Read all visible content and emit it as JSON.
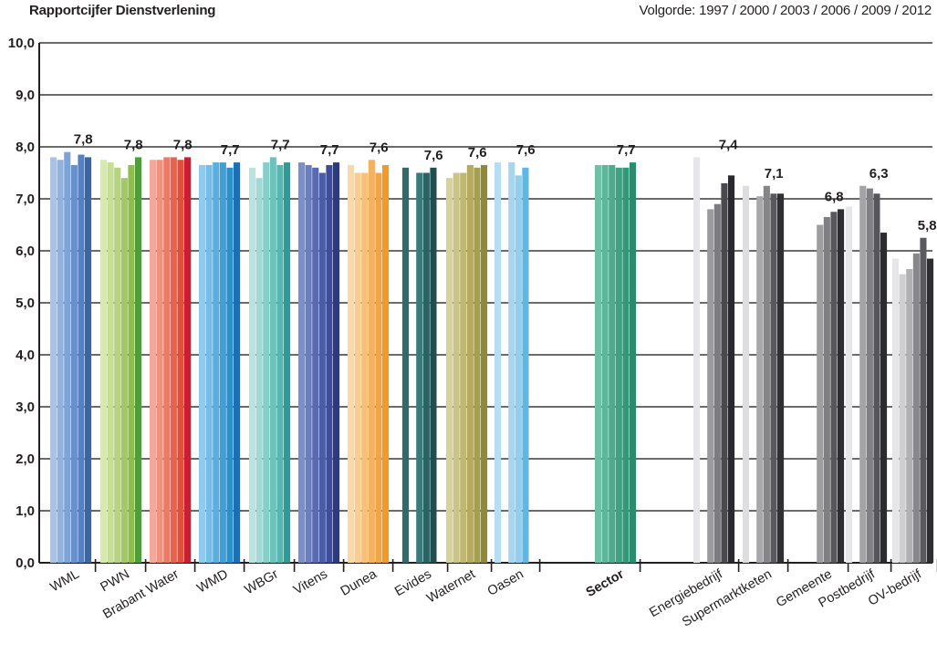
{
  "chart_data": {
    "type": "bar",
    "title": "Rapportcijfer Dienstverlening",
    "subtitle": "Volgorde: 1997 / 2000 / 2003 / 2006 / 2009 / 2012",
    "ylim": [
      0,
      10
    ],
    "yticks": [
      "0,0",
      "1,0",
      "2,0",
      "3,0",
      "4,0",
      "5,0",
      "6,0",
      "7,0",
      "8,0",
      "9,0",
      "10,0"
    ],
    "grid": true,
    "years": [
      "1997",
      "2000",
      "2003",
      "2006",
      "2009",
      "2012"
    ],
    "categories": [
      {
        "name": "WML",
        "bold": false,
        "label": "7,8",
        "values": [
          7.8,
          7.75,
          7.9,
          7.65,
          7.85,
          7.8
        ],
        "colors": [
          "#a9c3e6",
          "#92b2de",
          "#7ea3d6",
          "#6790cc",
          "#5580c2",
          "#3a66a8"
        ]
      },
      {
        "name": "PWN",
        "bold": false,
        "label": "7,8",
        "values": [
          7.75,
          7.7,
          7.6,
          7.4,
          7.65,
          7.8
        ],
        "colors": [
          "#d8e8b3",
          "#c7dd98",
          "#b6d380",
          "#a4c866",
          "#8fbd4c",
          "#4f9d3a"
        ]
      },
      {
        "name": "Brabant Water",
        "bold": false,
        "label": "7,8",
        "values": [
          7.75,
          7.75,
          7.8,
          7.8,
          7.75,
          7.8
        ],
        "colors": [
          "#f4a89a",
          "#f0907f",
          "#ec7a67",
          "#e6644f",
          "#e14e3a",
          "#c82033"
        ]
      },
      {
        "name": "WMD",
        "bold": false,
        "label": "7,7",
        "values": [
          7.65,
          7.65,
          7.7,
          7.7,
          7.6,
          7.7
        ],
        "colors": [
          "#8fcbee",
          "#74bde8",
          "#58afe1",
          "#3fa0d9",
          "#2a90cf",
          "#1c6fb3"
        ]
      },
      {
        "name": "WBGr",
        "bold": false,
        "label": "7,7",
        "values": [
          7.6,
          7.4,
          7.7,
          7.8,
          7.65,
          7.7
        ],
        "colors": [
          "#b9e3e0",
          "#a0d9d5",
          "#87cec9",
          "#6ec2bd",
          "#56b7b1",
          "#2e9b96"
        ]
      },
      {
        "name": "Vitens",
        "bold": false,
        "label": "7,7",
        "values": [
          7.7,
          7.65,
          7.6,
          7.5,
          7.65,
          7.7
        ],
        "colors": [
          "#7d8fc8",
          "#6a7dbd",
          "#586bb1",
          "#4a5ca6",
          "#3c4e9b",
          "#2a3a84"
        ]
      },
      {
        "name": "Dunea",
        "bold": false,
        "label": "7,6",
        "values": [
          7.65,
          7.5,
          7.5,
          7.75,
          7.5,
          7.65
        ],
        "colors": [
          "#fbd9a7",
          "#f9cd8f",
          "#f7c077",
          "#f5b25e",
          "#f3a546",
          "#ef9a2a"
        ]
      },
      {
        "name": "Evides",
        "bold": false,
        "label": "7,6",
        "values": [
          7.6,
          0,
          7.5,
          7.5,
          7.6,
          0
        ],
        "colors": [
          "#2f6b6b",
          "#2f6b6b",
          "#3a7a7a",
          "#2a6363",
          "#1f4d50",
          "#1f4d50"
        ]
      },
      {
        "name": "Waternet",
        "bold": false,
        "label": "7,6",
        "values": [
          7.4,
          7.5,
          7.5,
          7.65,
          7.6,
          7.65
        ],
        "colors": [
          "#d7d19a",
          "#cbc585",
          "#c0b872",
          "#b4ab60",
          "#a69e50",
          "#8e8a3c"
        ]
      },
      {
        "name": "Oasen",
        "bold": false,
        "label": "7,6",
        "values": [
          7.7,
          0,
          7.7,
          7.45,
          7.6,
          0
        ],
        "colors": [
          "#b5def5",
          "#b5def5",
          "#a4d6f2",
          "#92ceef",
          "#5fb7e4",
          "#5fb7e4"
        ]
      },
      {
        "name": "Sector",
        "bold": true,
        "label": "7,7",
        "values": [
          7.65,
          7.65,
          7.65,
          7.6,
          7.6,
          7.7
        ],
        "colors": [
          "#6fc0a6",
          "#5cb699",
          "#4cab8d",
          "#3ea181",
          "#339877",
          "#2a8c6c"
        ]
      },
      {
        "name": "Energiebedrijf",
        "bold": false,
        "label": "7,4",
        "values": [
          7.8,
          0,
          6.8,
          6.9,
          7.3,
          7.45
        ],
        "colors": [
          "#e6e6e8",
          "#e6e6e8",
          "#9b9b9e",
          "#7c7c80",
          "#4a4a4e",
          "#2a2a2e"
        ]
      },
      {
        "name": "Supermarktketen",
        "bold": false,
        "label": "7,1",
        "values": [
          7.25,
          0,
          7.05,
          7.25,
          7.1,
          7.1
        ],
        "colors": [
          "#dedee0",
          "#dedee0",
          "#a8a8ab",
          "#858589",
          "#5a5a5e",
          "#303034"
        ]
      },
      {
        "name": "Gemeente",
        "bold": false,
        "label": "6,8",
        "values": [
          0,
          0,
          6.5,
          6.65,
          6.75,
          6.8
        ],
        "colors": [
          "#dedee0",
          "#dedee0",
          "#9e9ea1",
          "#7f7f83",
          "#58585c",
          "#2e2e32"
        ]
      },
      {
        "name": "Postbedrijf",
        "bold": false,
        "label": "6,3",
        "values": [
          6.85,
          0,
          7.25,
          7.2,
          7.1,
          6.35
        ],
        "colors": [
          "#e6e6e8",
          "#e6e6e8",
          "#a4a4a7",
          "#808084",
          "#56565a",
          "#2c2c30"
        ]
      },
      {
        "name": "OV-bedrijf",
        "bold": false,
        "label": "5,8",
        "values": [
          5.85,
          5.55,
          5.65,
          5.95,
          6.25,
          5.85
        ],
        "colors": [
          "#e6e6e8",
          "#cfcfd2",
          "#b1b1b4",
          "#88888c",
          "#5a5a5e",
          "#2e2e32"
        ]
      }
    ]
  }
}
